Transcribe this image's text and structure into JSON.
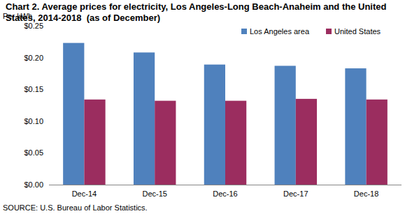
{
  "chart_data": {
    "type": "bar",
    "title": "Chart 2. Average prices for electricity, Los Angeles-Long Beach-Anaheim and the United States, 2014-2018  (as of December)",
    "y_label": "Per kWh",
    "source": "SOURCE: U.S. Bureau of Labor Statistics.",
    "categories": [
      "Dec-14",
      "Dec-15",
      "Dec-16",
      "Dec-17",
      "Dec-18"
    ],
    "series": [
      {
        "name": "Los Angeles area",
        "color": "#4f81bd",
        "values": [
          0.223,
          0.208,
          0.189,
          0.187,
          0.183
        ]
      },
      {
        "name": "United States",
        "color": "#9b2d5f",
        "values": [
          0.134,
          0.132,
          0.132,
          0.135,
          0.134
        ]
      }
    ],
    "ylim": [
      0,
      0.25
    ],
    "yticks": [
      {
        "value": 0,
        "label": "$0.00"
      },
      {
        "value": 0.05,
        "label": "$0.05"
      },
      {
        "value": 0.1,
        "label": "$0.10"
      },
      {
        "value": 0.15,
        "label": "$0.15"
      },
      {
        "value": 0.2,
        "label": "$0.20"
      },
      {
        "value": 0.25,
        "label": "$0.25"
      }
    ],
    "grid": false,
    "legend": "top-right"
  }
}
